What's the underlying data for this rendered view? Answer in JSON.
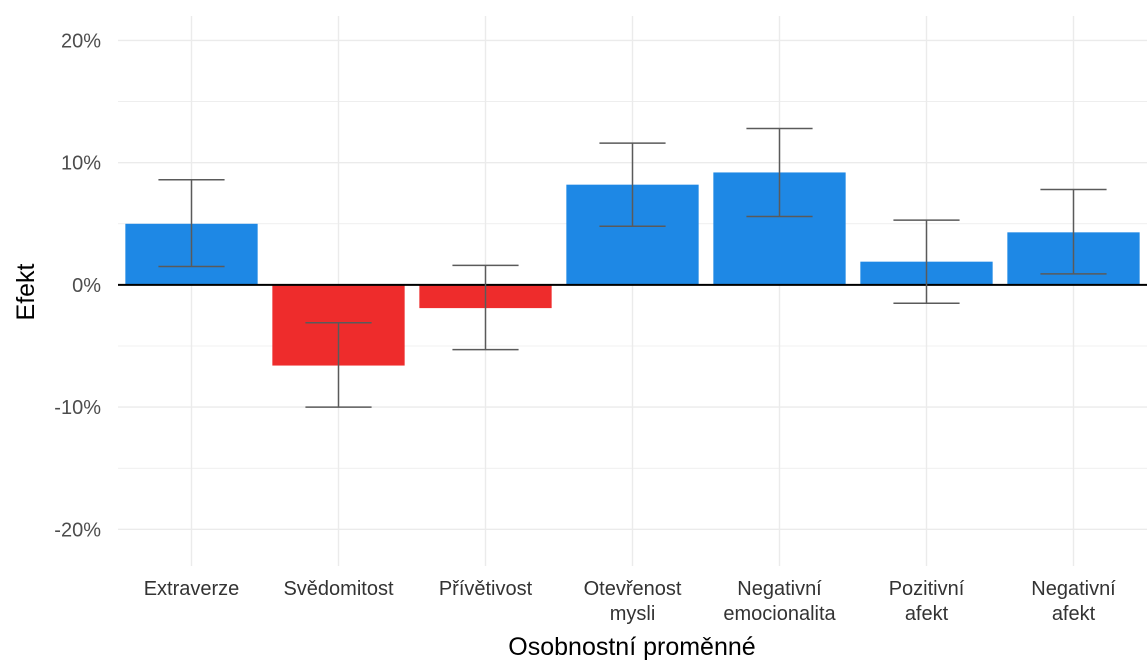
{
  "chart_data": {
    "type": "bar",
    "xlabel": "Osobnostní proměnné",
    "ylabel": "Efekt",
    "ylim": [
      -0.23,
      0.22
    ],
    "y_ticks": [
      -0.2,
      -0.1,
      0,
      0.1,
      0.2
    ],
    "y_tick_labels": [
      "-20%",
      "-10%",
      "0%",
      "10%",
      "20%"
    ],
    "grid": true,
    "legend": "none",
    "categories": [
      [
        "Extraverze"
      ],
      [
        "Svědomitost"
      ],
      [
        "Přívětivost"
      ],
      [
        "Otevřenost",
        "mysli"
      ],
      [
        "Negativní",
        "emocionalita"
      ],
      [
        "Pozitivní",
        "afekt"
      ],
      [
        "Negativní",
        "afekt"
      ]
    ],
    "values": [
      0.05,
      -0.066,
      -0.019,
      0.082,
      0.092,
      0.019,
      0.043
    ],
    "error_low": [
      0.015,
      -0.1,
      -0.053,
      0.048,
      0.056,
      -0.015,
      0.009
    ],
    "error_high": [
      0.086,
      -0.031,
      0.016,
      0.116,
      0.128,
      0.053,
      0.078
    ],
    "colors": {
      "positive": "#1e88e5",
      "negative": "#ee2c2c",
      "errorbar": "#5a5a5a",
      "grid": "#ebebeb",
      "zero_line": "#000000"
    }
  }
}
